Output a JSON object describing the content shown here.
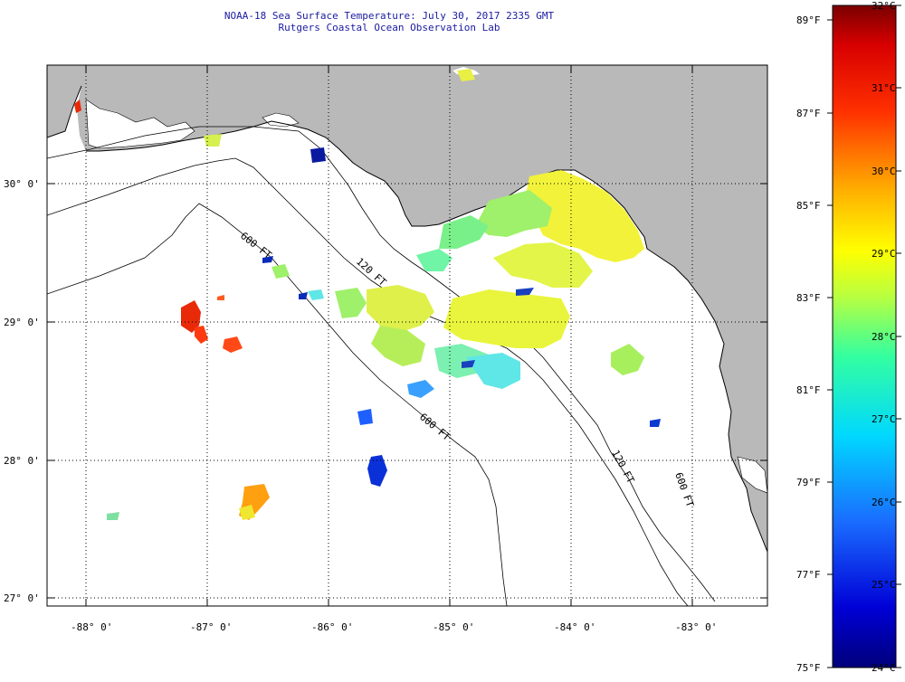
{
  "title_line1": "NOAA-18 Sea Surface Temperature:  July 30, 2017 2335 GMT",
  "title_line2": "Rutgers Coastal Ocean Observation Lab",
  "map": {
    "lon_labels": [
      "-88° 0'",
      "-87° 0'",
      "-86° 0'",
      "-85° 0'",
      "-84° 0'",
      "-83° 0'"
    ],
    "lat_labels": [
      "30° 0'",
      "29° 0'",
      "28° 0'",
      "27° 0'"
    ],
    "contour_labels": [
      "600 FT",
      "120 FT",
      "600 FT",
      "120 FT",
      "600 FT"
    ],
    "colors": {
      "land": "#b9b9b9",
      "ocean": "#ffffff",
      "grid": "#000000"
    }
  },
  "colorbar": {
    "fahrenheit_labels": [
      "89°F",
      "87°F",
      "85°F",
      "83°F",
      "81°F",
      "79°F",
      "77°F",
      "75°F"
    ],
    "celsius_labels": [
      "32°C",
      "31°C",
      "30°C",
      "29°C",
      "28°C",
      "27°C",
      "26°C",
      "25°C",
      "24°C"
    ],
    "min_c": 24,
    "max_c": 32
  }
}
